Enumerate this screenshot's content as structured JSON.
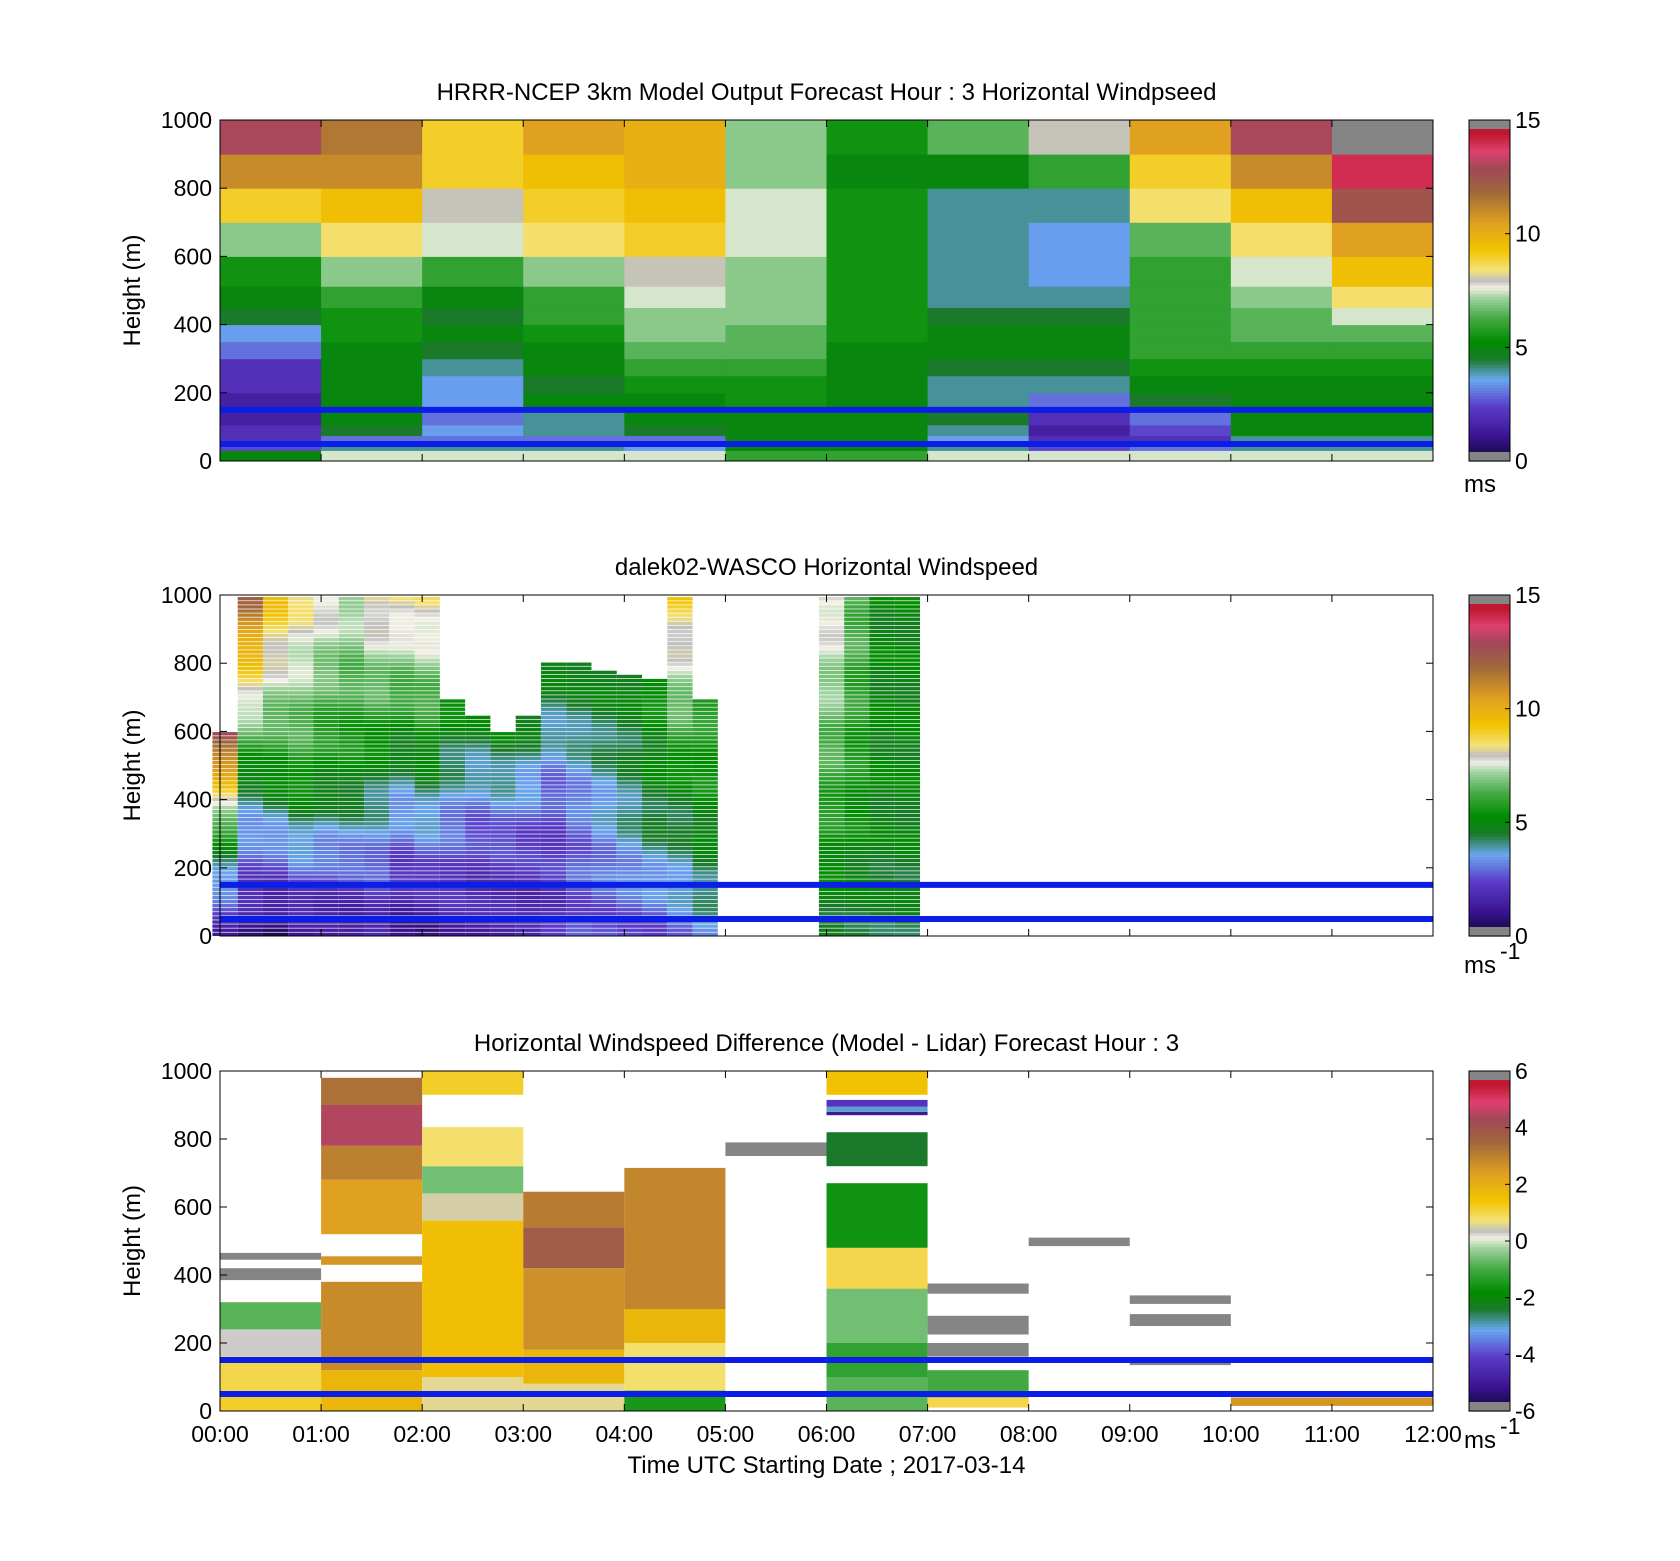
{
  "chart_data": [
    {
      "type": "heatmap",
      "title": "HRRR-NCEP 3km Model Output   Forecast Hour : 3 Horizontal Windpseed",
      "ylabel": "Height (m)",
      "xlabel": "",
      "ylim": [
        0,
        1000
      ],
      "yticks": [
        "0",
        "200",
        "400",
        "600",
        "800",
        "1000"
      ],
      "x_hours": [
        0,
        12
      ],
      "colorbar": {
        "ticks": [
          "0",
          "5",
          "10",
          "15"
        ],
        "range": [
          0,
          15
        ],
        "unit": "ms",
        "unit_exp": ""
      },
      "reference_lines_m": [
        150,
        50
      ],
      "reference_line_color": "#0a1ee6",
      "heights": [
        25,
        37,
        50,
        62,
        87,
        125,
        175,
        225,
        275,
        325,
        375,
        425,
        475,
        550,
        650,
        750,
        850,
        950
      ],
      "columns": [
        {
          "time": "00:00",
          "speeds": [
            5.0,
            2.5,
            2.0,
            2.0,
            2.0,
            1.5,
            1.5,
            2.0,
            2.0,
            3.0,
            3.5,
            4.5,
            5.0,
            5.5,
            7.0,
            9.0,
            11.0,
            13.0
          ]
        },
        {
          "time": "01:00",
          "speeds": [
            7.5,
            4.0,
            3.5,
            3.0,
            4.5,
            5.0,
            5.0,
            5.0,
            5.0,
            5.0,
            5.5,
            5.5,
            6.0,
            7.0,
            8.5,
            9.5,
            11.0,
            11.5
          ]
        },
        {
          "time": "02:00",
          "speeds": [
            7.5,
            4.0,
            3.5,
            3.0,
            3.5,
            3.0,
            3.5,
            3.5,
            4.0,
            4.5,
            5.0,
            4.5,
            5.0,
            6.0,
            7.5,
            8.0,
            9.0,
            9.0
          ]
        },
        {
          "time": "03:00",
          "speeds": [
            7.5,
            4.0,
            3.5,
            3.0,
            4.0,
            4.0,
            5.0,
            4.5,
            5.0,
            5.0,
            5.5,
            6.0,
            6.0,
            7.0,
            8.5,
            9.0,
            9.5,
            10.5
          ]
        },
        {
          "time": "04:00",
          "speeds": [
            7.5,
            3.5,
            3.0,
            3.0,
            4.5,
            5.0,
            5.0,
            5.5,
            6.0,
            6.5,
            7.0,
            7.0,
            7.5,
            8.0,
            9.0,
            9.5,
            10.0,
            10.0
          ]
        },
        {
          "time": "05:00",
          "speeds": [
            6.0,
            5.0,
            5.0,
            5.0,
            5.0,
            5.0,
            5.5,
            5.5,
            6.0,
            6.5,
            6.5,
            7.0,
            7.0,
            7.0,
            7.5,
            7.5,
            7.0,
            7.0
          ]
        },
        {
          "time": "06:00",
          "speeds": [
            6.0,
            5.0,
            5.0,
            5.0,
            5.0,
            5.0,
            5.0,
            5.0,
            5.0,
            5.0,
            5.5,
            5.5,
            5.5,
            5.5,
            5.5,
            5.5,
            5.0,
            5.5
          ]
        },
        {
          "time": "07:00",
          "speeds": [
            7.5,
            4.0,
            3.5,
            3.5,
            4.0,
            4.5,
            4.0,
            4.0,
            4.5,
            5.0,
            5.0,
            4.5,
            4.0,
            4.0,
            4.0,
            4.0,
            5.0,
            6.5
          ]
        },
        {
          "time": "08:00",
          "speeds": [
            7.5,
            2.5,
            2.0,
            2.0,
            1.5,
            2.0,
            3.0,
            4.0,
            4.5,
            5.0,
            5.0,
            4.5,
            4.0,
            3.5,
            3.5,
            4.0,
            6.0,
            8.0
          ]
        },
        {
          "time": "09:00",
          "speeds": [
            7.5,
            3.0,
            2.0,
            2.0,
            2.5,
            3.0,
            4.5,
            5.0,
            5.5,
            6.0,
            6.0,
            6.0,
            6.0,
            6.0,
            6.5,
            8.5,
            9.0,
            10.5
          ]
        },
        {
          "time": "10:00",
          "speeds": [
            7.5,
            4.0,
            4.0,
            4.0,
            5.0,
            5.0,
            5.0,
            5.0,
            5.5,
            6.0,
            6.5,
            6.5,
            7.0,
            7.5,
            8.5,
            9.5,
            11.0,
            13.0
          ]
        },
        {
          "time": "11:00",
          "speeds": [
            7.5,
            4.0,
            4.0,
            4.0,
            5.0,
            5.0,
            5.0,
            5.0,
            5.5,
            6.0,
            6.5,
            7.5,
            8.5,
            9.5,
            10.5,
            12.5,
            14.0,
            16.0
          ]
        }
      ]
    },
    {
      "type": "heatmap",
      "title": "dalek02-WASCO  Horizontal Windspeed",
      "ylabel": "Height (m)",
      "xlabel": "",
      "ylim": [
        0,
        1000
      ],
      "yticks": [
        "0",
        "200",
        "400",
        "600",
        "800",
        "1000"
      ],
      "x_hours": [
        0,
        12
      ],
      "colorbar": {
        "ticks": [
          "0",
          "5",
          "10",
          "15"
        ],
        "range": [
          0,
          15
        ],
        "unit": "ms",
        "unit_exp": "-1"
      },
      "reference_lines_m": [
        150,
        50
      ],
      "reference_line_color": "#0a1ee6",
      "note_values": "profiles of measured speed (m/s) by height; no-data gaps left blank",
      "columns": [
        {
          "t": 0.05,
          "top": 600,
          "low": 1.5,
          "mid": 5.0,
          "high": 13.0
        },
        {
          "t": 0.3,
          "top": 1000,
          "low": 1.0,
          "mid": 4.5,
          "high": 12.0
        },
        {
          "t": 0.55,
          "top": 1000,
          "low": 0.5,
          "mid": 5.0,
          "high": 9.5
        },
        {
          "t": 0.8,
          "top": 1000,
          "low": 1.0,
          "mid": 5.5,
          "high": 8.5
        },
        {
          "t": 1.05,
          "top": 1000,
          "low": 1.0,
          "mid": 5.0,
          "high": 8.0
        },
        {
          "t": 1.3,
          "top": 1000,
          "low": 1.0,
          "mid": 5.0,
          "high": 7.5
        },
        {
          "t": 1.55,
          "top": 1000,
          "low": 1.5,
          "mid": 4.5,
          "high": 8.5
        },
        {
          "t": 1.8,
          "top": 1000,
          "low": 1.0,
          "mid": 4.0,
          "high": 8.5
        },
        {
          "t": 2.05,
          "top": 1000,
          "low": 1.0,
          "mid": 4.5,
          "high": 8.5
        },
        {
          "t": 2.3,
          "top": 700,
          "low": 1.5,
          "mid": 3.0,
          "high": 5.5
        },
        {
          "t": 2.55,
          "top": 650,
          "low": 1.5,
          "mid": 2.5,
          "high": 5.0
        },
        {
          "t": 2.8,
          "top": 600,
          "low": 1.5,
          "mid": 2.5,
          "high": 5.0
        },
        {
          "t": 3.05,
          "top": 650,
          "low": 1.5,
          "mid": 2.5,
          "high": 5.0
        },
        {
          "t": 3.3,
          "top": 800,
          "low": 2.0,
          "mid": 2.5,
          "high": 5.0
        },
        {
          "t": 3.55,
          "top": 800,
          "low": 2.5,
          "mid": 3.0,
          "high": 5.0
        },
        {
          "t": 3.8,
          "top": 780,
          "low": 2.5,
          "mid": 3.5,
          "high": 5.0
        },
        {
          "t": 4.05,
          "top": 770,
          "low": 2.5,
          "mid": 4.0,
          "high": 5.0
        },
        {
          "t": 4.3,
          "top": 750,
          "low": 2.5,
          "mid": 4.5,
          "high": 5.5
        },
        {
          "t": 4.55,
          "top": 1000,
          "low": 3.0,
          "mid": 5.0,
          "high": 9.0
        },
        {
          "t": 4.8,
          "top": 700,
          "low": 3.5,
          "mid": 5.0,
          "high": 6.0
        },
        {
          "t": 6.05,
          "top": 1000,
          "low": 4.5,
          "mid": 6.0,
          "high": 8.0
        },
        {
          "t": 6.3,
          "top": 1000,
          "low": 4.5,
          "mid": 5.5,
          "high": 6.5
        },
        {
          "t": 6.55,
          "top": 1000,
          "low": 4.5,
          "mid": 5.0,
          "high": 5.0
        },
        {
          "t": 6.8,
          "top": 1000,
          "low": 4.5,
          "mid": 5.0,
          "high": 5.0
        }
      ]
    },
    {
      "type": "heatmap",
      "title": "Horizontal Windspeed Difference (Model - Lidar) Forecast Hour : 3",
      "xlabel": "Time UTC  Starting Date ; 2017-03-14",
      "ylabel": "Height (m)",
      "ylim": [
        0,
        1000
      ],
      "yticks": [
        "0",
        "200",
        "400",
        "600",
        "800",
        "1000"
      ],
      "xticks": [
        "00:00",
        "01:00",
        "02:00",
        "03:00",
        "04:00",
        "05:00",
        "06:00",
        "07:00",
        "08:00",
        "09:00",
        "10:00",
        "11:00",
        "12:00"
      ],
      "colorbar": {
        "ticks": [
          "-6",
          "-4",
          "-2",
          "0",
          "2",
          "4",
          "6"
        ],
        "range": [
          -6,
          6
        ],
        "unit": "ms",
        "unit_exp": "-1"
      },
      "reference_lines_m": [
        150,
        50
      ],
      "reference_line_color": "#0a1ee6",
      "blocks": [
        {
          "t0": 0,
          "t1": 1,
          "h0": 0,
          "h1": 60,
          "diff": 1.2
        },
        {
          "t0": 0,
          "t1": 1,
          "h0": 60,
          "h1": 160,
          "diff": 1.0
        },
        {
          "t0": 0,
          "t1": 1,
          "h0": 160,
          "h1": 240,
          "diff": 0.3
        },
        {
          "t0": 0,
          "t1": 1,
          "h0": 240,
          "h1": 320,
          "diff": -0.8
        },
        {
          "t0": 0,
          "t1": 1,
          "h0": 385,
          "h1": 420,
          "diff": 9
        },
        {
          "t0": 0,
          "t1": 1,
          "h0": 445,
          "h1": 465,
          "diff": 9
        },
        {
          "t0": 1,
          "t1": 2,
          "h0": 0,
          "h1": 120,
          "diff": 1.8
        },
        {
          "t0": 1,
          "t1": 2,
          "h0": 120,
          "h1": 380,
          "diff": 2.8
        },
        {
          "t0": 1,
          "t1": 2,
          "h0": 430,
          "h1": 455,
          "diff": 2.6
        },
        {
          "t0": 1,
          "t1": 2,
          "h0": 520,
          "h1": 680,
          "diff": 2.4
        },
        {
          "t0": 1,
          "t1": 2,
          "h0": 680,
          "h1": 780,
          "diff": 3.0
        },
        {
          "t0": 1,
          "t1": 2,
          "h0": 780,
          "h1": 900,
          "diff": 4.5
        },
        {
          "t0": 1,
          "t1": 2,
          "h0": 900,
          "h1": 980,
          "diff": 3.3
        },
        {
          "t0": 2,
          "t1": 3,
          "h0": 0,
          "h1": 100,
          "diff": 0.6
        },
        {
          "t0": 2,
          "t1": 3,
          "h0": 100,
          "h1": 560,
          "diff": 1.6
        },
        {
          "t0": 2,
          "t1": 3,
          "h0": 560,
          "h1": 640,
          "diff": 0.5
        },
        {
          "t0": 2,
          "t1": 3,
          "h0": 640,
          "h1": 720,
          "diff": -0.6
        },
        {
          "t0": 2,
          "t1": 3,
          "h0": 720,
          "h1": 835,
          "diff": 0.8
        },
        {
          "t0": 2,
          "t1": 3,
          "h0": 930,
          "h1": 1000,
          "diff": 1.2
        },
        {
          "t0": 3,
          "t1": 4,
          "h0": 0,
          "h1": 80,
          "diff": 0.6
        },
        {
          "t0": 3,
          "t1": 4,
          "h0": 80,
          "h1": 180,
          "diff": 1.8
        },
        {
          "t0": 3,
          "t1": 4,
          "h0": 180,
          "h1": 420,
          "diff": 2.7
        },
        {
          "t0": 3,
          "t1": 4,
          "h0": 420,
          "h1": 540,
          "diff": 3.8
        },
        {
          "t0": 3,
          "t1": 4,
          "h0": 540,
          "h1": 645,
          "diff": 3.1
        },
        {
          "t0": 4,
          "t1": 5,
          "h0": 0,
          "h1": 60,
          "diff": -1.5
        },
        {
          "t0": 4,
          "t1": 5,
          "h0": 60,
          "h1": 200,
          "diff": 0.8
        },
        {
          "t0": 4,
          "t1": 5,
          "h0": 200,
          "h1": 300,
          "diff": 1.8
        },
        {
          "t0": 4,
          "t1": 5,
          "h0": 300,
          "h1": 715,
          "diff": 2.9
        },
        {
          "t0": 5,
          "t1": 6,
          "h0": 750,
          "h1": 790,
          "diff": 9
        },
        {
          "t0": 6,
          "t1": 7,
          "h0": 0,
          "h1": 100,
          "diff": -0.8
        },
        {
          "t0": 6,
          "t1": 7,
          "h0": 100,
          "h1": 200,
          "diff": -1.2
        },
        {
          "t0": 6,
          "t1": 7,
          "h0": 200,
          "h1": 360,
          "diff": -0.6
        },
        {
          "t0": 6,
          "t1": 7,
          "h0": 360,
          "h1": 480,
          "diff": 1.0
        },
        {
          "t0": 6,
          "t1": 7,
          "h0": 480,
          "h1": 670,
          "diff": -1.6
        },
        {
          "t0": 6,
          "t1": 7,
          "h0": 720,
          "h1": 820,
          "diff": -2.4
        },
        {
          "t0": 6,
          "t1": 7,
          "h0": 870,
          "h1": 880,
          "diff": -5.0
        },
        {
          "t0": 6,
          "t1": 7,
          "h0": 880,
          "h1": 895,
          "diff": -3.0
        },
        {
          "t0": 6,
          "t1": 7,
          "h0": 895,
          "h1": 915,
          "diff": -4.3
        },
        {
          "t0": 6,
          "t1": 7,
          "h0": 930,
          "h1": 1000,
          "diff": 1.5
        },
        {
          "t0": 7,
          "t1": 8,
          "h0": 10,
          "h1": 40,
          "diff": 1.0
        },
        {
          "t0": 7,
          "t1": 8,
          "h0": 40,
          "h1": 120,
          "diff": -1.0
        },
        {
          "t0": 7,
          "t1": 8,
          "h0": 160,
          "h1": 200,
          "diff": 9
        },
        {
          "t0": 7,
          "t1": 8,
          "h0": 225,
          "h1": 280,
          "diff": 9
        },
        {
          "t0": 7,
          "t1": 8,
          "h0": 345,
          "h1": 375,
          "diff": 9
        },
        {
          "t0": 8,
          "t1": 9,
          "h0": 485,
          "h1": 510,
          "diff": 9
        },
        {
          "t0": 9,
          "t1": 10,
          "h0": 135,
          "h1": 145,
          "diff": 9
        },
        {
          "t0": 9,
          "t1": 10,
          "h0": 250,
          "h1": 285,
          "diff": 9
        },
        {
          "t0": 9,
          "t1": 10,
          "h0": 315,
          "h1": 340,
          "diff": 9
        },
        {
          "t0": 10,
          "t1": 12,
          "h0": 15,
          "h1": 40,
          "diff": 2.6
        }
      ]
    }
  ]
}
